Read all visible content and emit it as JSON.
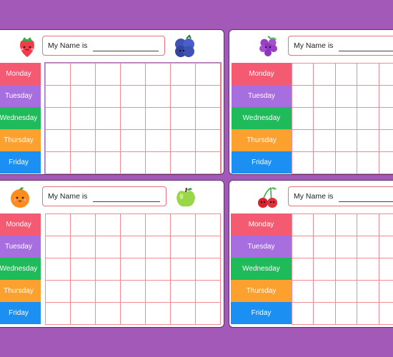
{
  "name_label": "My Name is",
  "days": [
    {
      "label": "Monday",
      "color": "#f45b73"
    },
    {
      "label": "Tuesday",
      "color": "#a76ee0"
    },
    {
      "label": "Wednesday",
      "color": "#1fba5a"
    },
    {
      "label": "Thursday",
      "color": "#fca02f"
    },
    {
      "label": "Friday",
      "color": "#1b8ff2"
    }
  ],
  "cards": [
    {
      "left_icon": "strawberry-icon",
      "right_icon": "blueberries-icon"
    },
    {
      "left_icon": "grapes-icon",
      "right_icon": ""
    },
    {
      "left_icon": "orange-icon",
      "right_icon": "green-apple-icon"
    },
    {
      "left_icon": "cherries-icon",
      "right_icon": ""
    }
  ],
  "background_color": "#a259b8",
  "grid_line_color": "#f08a94"
}
